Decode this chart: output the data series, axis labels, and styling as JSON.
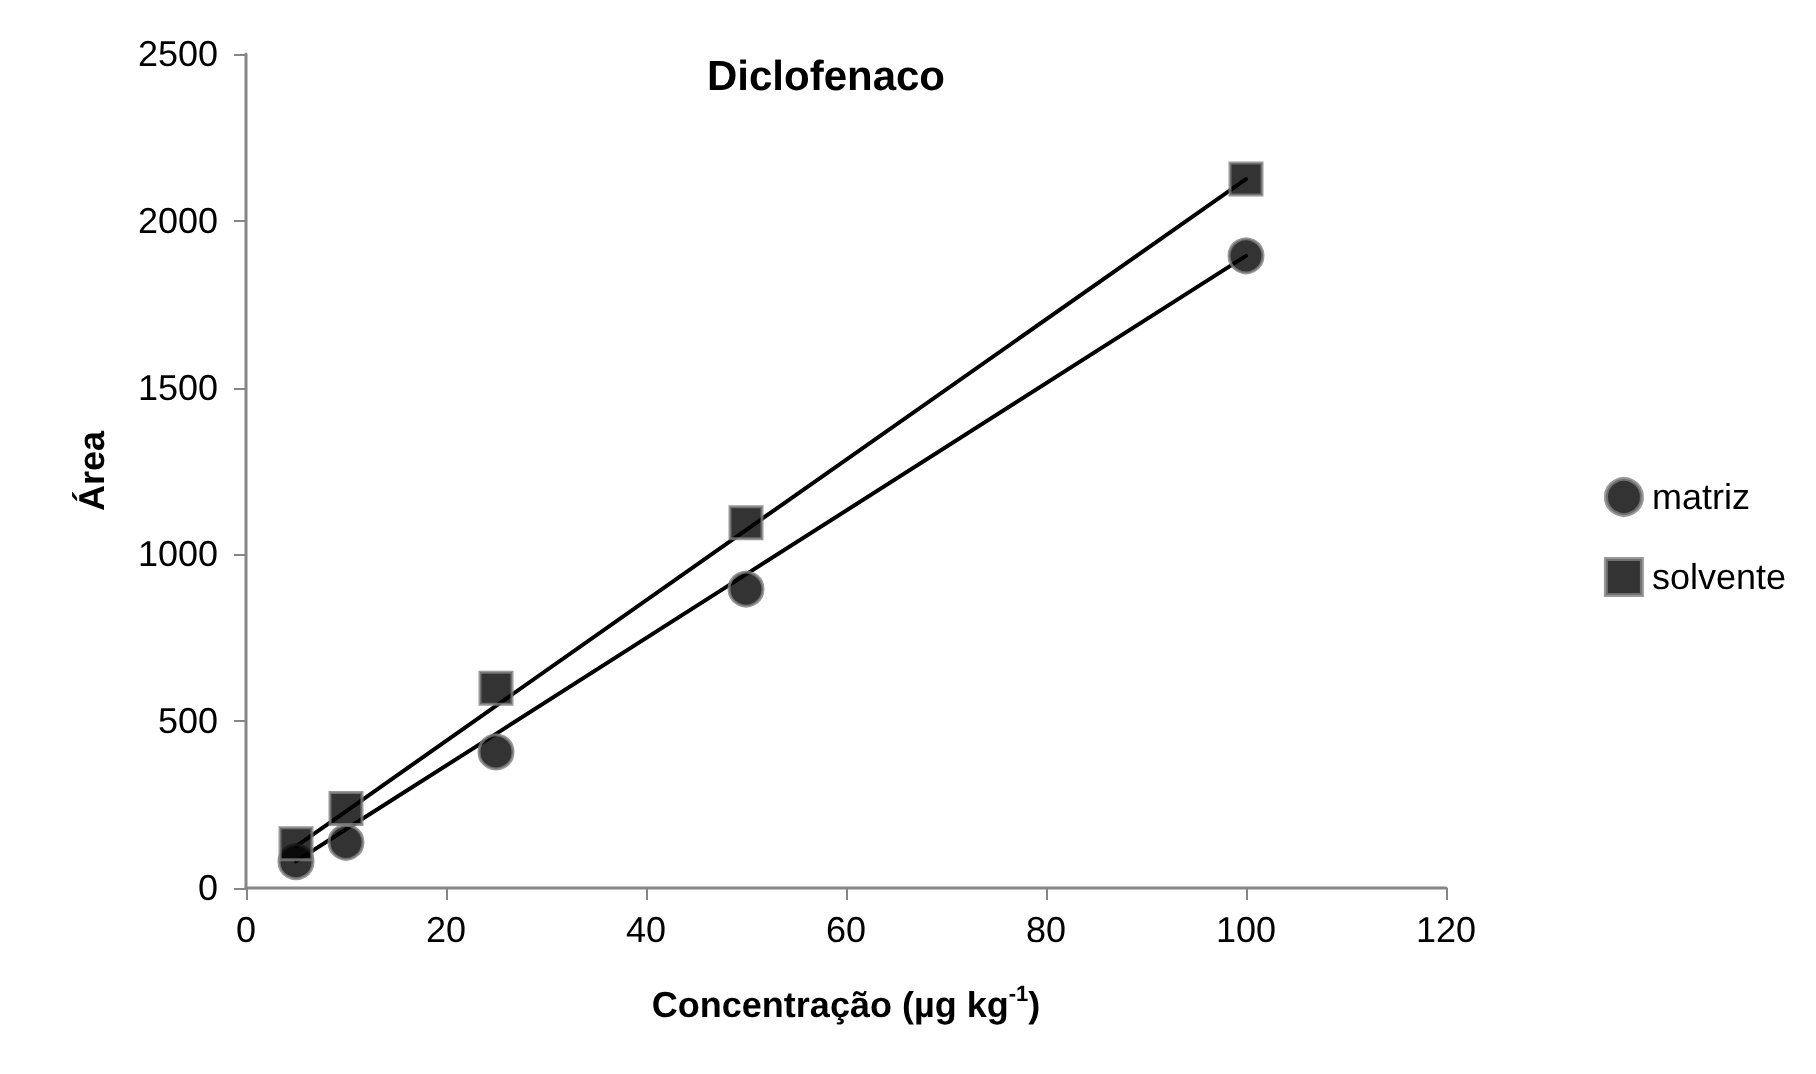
{
  "chart_data": {
    "type": "scatter",
    "title": "Diclofenaco",
    "xlabel": "Concentração (µg kg$^{-1}$)",
    "ylabel": "Área",
    "xlim": [
      0,
      120
    ],
    "xticks": [
      0,
      20,
      40,
      60,
      80,
      100,
      120
    ],
    "ylim": [
      0,
      2500
    ],
    "yticks": [
      0,
      500,
      1000,
      1500,
      2000,
      2500
    ],
    "grid": false,
    "legend": "right",
    "x": [
      5,
      10,
      25,
      50,
      100
    ],
    "series": [
      {
        "name": "matriz",
        "color": "#000000",
        "marker": "circle",
        "values": [
          79,
          137,
          408,
          896,
          1895
        ]
      },
      {
        "name": "solvente",
        "color": "#000000",
        "marker": "square",
        "values": [
          133,
          238,
          599,
          1095,
          2125
        ]
      },
      {
        "type": "line",
        "color": "#000000",
        "marker": "none",
        "values": [
          80,
          176,
          462,
          940,
          1895
        ]
      },
      {
        "type": "line",
        "color": "#000000",
        "marker": "none",
        "values": [
          125,
          230,
          546,
          1073,
          2125
        ]
      }
    ]
  }
}
